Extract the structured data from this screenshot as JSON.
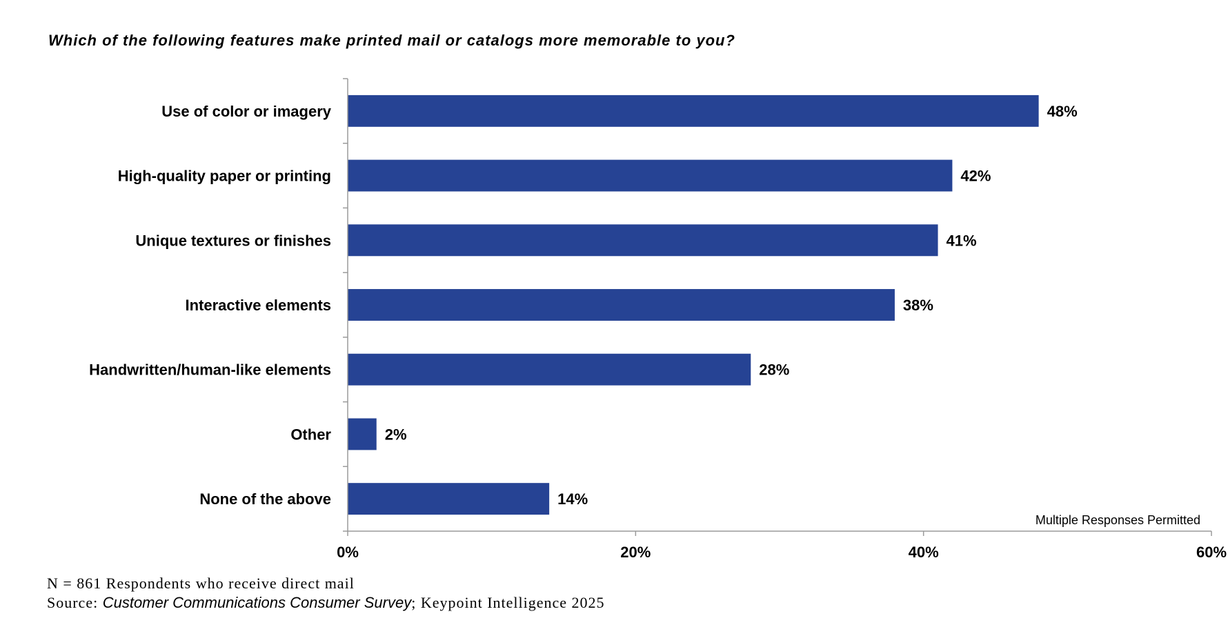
{
  "chart_data": {
    "type": "bar",
    "orientation": "horizontal",
    "title": "Which of the following features make printed mail or catalogs more memorable to you?",
    "categories": [
      "Use of color or imagery",
      "High-quality paper or printing",
      "Unique textures or finishes",
      "Interactive elements",
      "Handwritten/human-like elements",
      "Other",
      "None of the above"
    ],
    "values": [
      48,
      42,
      41,
      38,
      28,
      2,
      14
    ],
    "value_labels": [
      "48%",
      "42%",
      "41%",
      "38%",
      "28%",
      "2%",
      "14%"
    ],
    "xlim": [
      0,
      60
    ],
    "xticks": [
      0,
      20,
      40,
      60
    ],
    "xtick_labels": [
      "0%",
      "20%",
      "40%",
      "60%"
    ],
    "grid": false,
    "bar_color": "#264394",
    "annotation": "Multiple Responses Permitted"
  },
  "footer": {
    "line1": "N = 861 Respondents who receive direct mail",
    "source_prefix": "Source: ",
    "source_title": "Customer Communications Consumer Survey",
    "source_suffix": "; Keypoint Intelligence 2025"
  }
}
